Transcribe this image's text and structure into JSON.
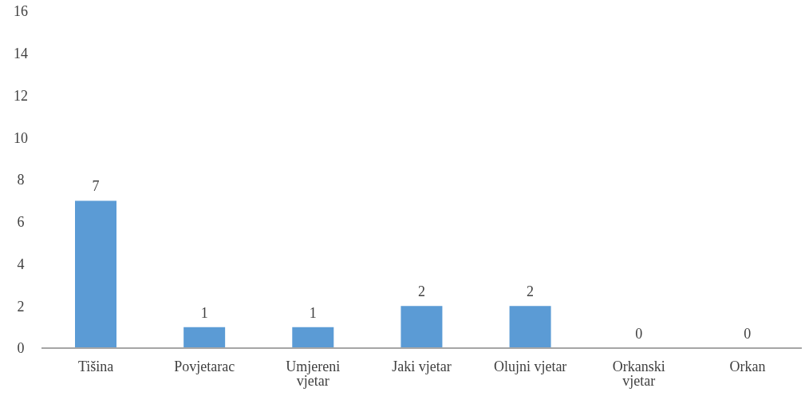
{
  "chart_data": {
    "type": "bar",
    "categories": [
      "Tišina",
      "Povjetarac",
      "Umjereni vjetar",
      "Jaki vjetar",
      "Olujni vjetar",
      "Orkanski vjetar",
      "Orkan"
    ],
    "values": [
      7,
      1,
      1,
      2,
      2,
      0,
      0
    ],
    "color": "#5b9bd5",
    "ylim": [
      0,
      16
    ],
    "yticks": [
      0,
      2,
      4,
      6,
      8,
      10,
      12,
      14,
      16
    ],
    "data_labels": true
  }
}
